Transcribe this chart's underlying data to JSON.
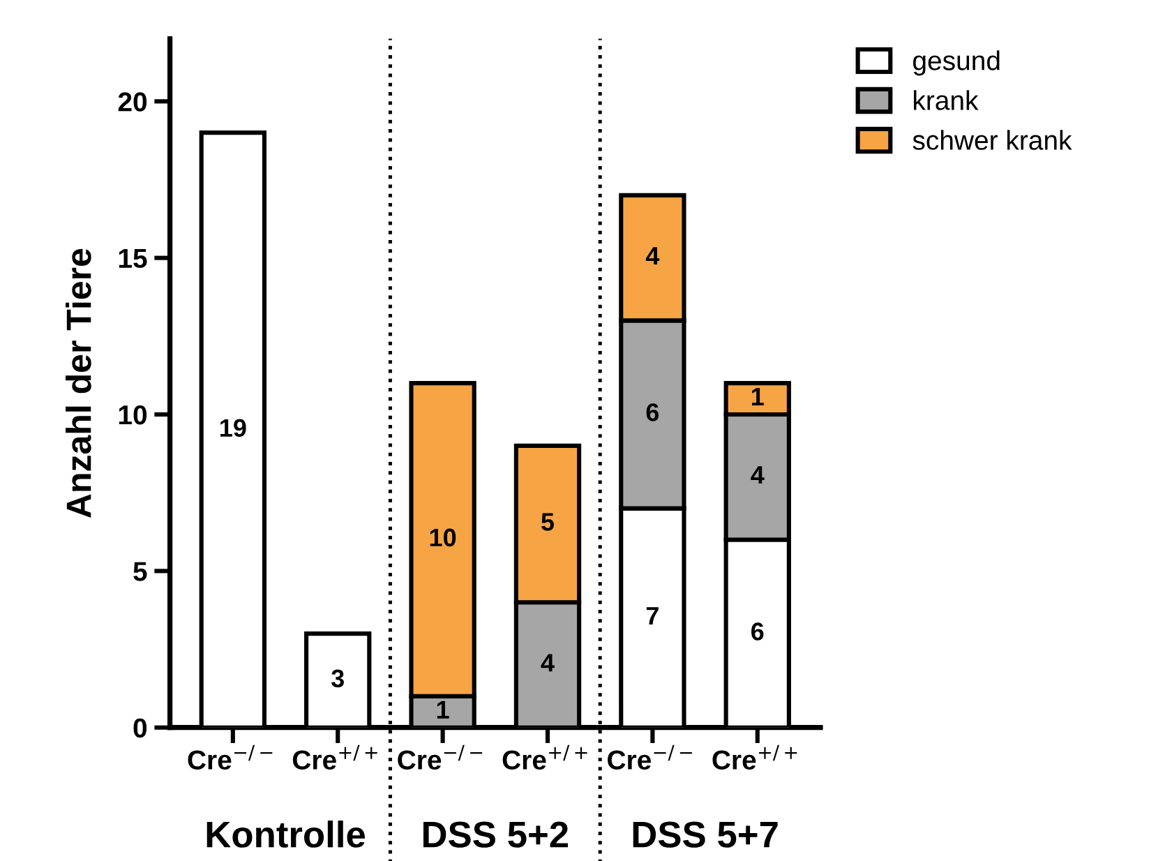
{
  "chart_data": {
    "type": "bar",
    "stacked": true,
    "ylabel": "Anzahl der Tiere",
    "categories": [
      "Cre$^{−/−}$",
      "Cre$^{+/+}$",
      "Cre$^{−/−}$",
      "Cre$^{+/+}$",
      "Cre$^{−/−}$",
      "Cre$^{+/+}$"
    ],
    "series": [
      {
        "name": "gesund",
        "color": "#ffffff",
        "values": [
          19,
          3,
          null,
          null,
          7,
          6
        ]
      },
      {
        "name": "krank",
        "color": "#a6a6a6",
        "values": [
          null,
          null,
          1,
          4,
          6,
          4
        ]
      },
      {
        "name": "schwer krank",
        "color": "#f7a444",
        "values": [
          null,
          null,
          10,
          5,
          4,
          1
        ]
      }
    ],
    "ylim": [
      0,
      22
    ],
    "yticks": [
      0,
      5,
      10,
      15,
      20
    ],
    "grid": false,
    "legend": "top right",
    "data_labels": true,
    "annotations": [
      "Kontrolle",
      "DSS 5+2",
      "DSS 5+7"
    ]
  }
}
